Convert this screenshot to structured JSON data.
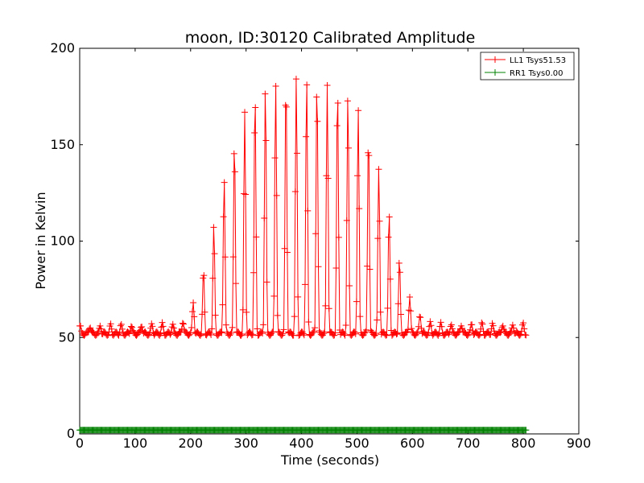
{
  "chart_data": {
    "type": "line",
    "title": "moon, ID:30120 Calibrated Amplitude",
    "xlabel": "Time (seconds)",
    "ylabel": "Power in Kelvin",
    "xlim": [
      0,
      900
    ],
    "ylim": [
      0,
      200
    ],
    "xticks": [
      0,
      100,
      200,
      300,
      400,
      500,
      600,
      700,
      800,
      900
    ],
    "yticks": [
      0,
      50,
      100,
      150,
      200
    ],
    "grid": false,
    "legend_position": "top-right",
    "series": [
      {
        "name": "LL1 Tsys51.53",
        "color": "#ff0000",
        "marker": "+",
        "description": "oscillating scan; baseline ~52 K, envelope peaks near 184 K at ~400 s",
        "peaks": [
          {
            "t": 0,
            "v": 56
          },
          {
            "t": 182,
            "v": 57
          },
          {
            "t": 200,
            "v": 65
          },
          {
            "t": 219,
            "v": 79
          },
          {
            "t": 238,
            "v": 102
          },
          {
            "t": 257,
            "v": 129
          },
          {
            "t": 276,
            "v": 150
          },
          {
            "t": 295,
            "v": 165
          },
          {
            "t": 314,
            "v": 175
          },
          {
            "t": 332,
            "v": 180
          },
          {
            "t": 351,
            "v": 182
          },
          {
            "t": 370,
            "v": 184
          },
          {
            "t": 388,
            "v": 184
          },
          {
            "t": 405,
            "v": 184
          },
          {
            "t": 424,
            "v": 184
          },
          {
            "t": 442,
            "v": 182
          },
          {
            "t": 460,
            "v": 180
          },
          {
            "t": 477,
            "v": 177
          },
          {
            "t": 495,
            "v": 172
          },
          {
            "t": 513,
            "v": 164
          },
          {
            "t": 532,
            "v": 147
          },
          {
            "t": 550,
            "v": 124
          },
          {
            "t": 568,
            "v": 101
          },
          {
            "t": 587,
            "v": 77
          },
          {
            "t": 606,
            "v": 65
          },
          {
            "t": 625,
            "v": 58
          },
          {
            "t": 644,
            "v": 57
          },
          {
            "t": 800,
            "v": 57
          }
        ],
        "baseline": 52
      },
      {
        "name": "RR1 Tsys0.00",
        "color": "#008000",
        "marker": "+",
        "description": "flat near 2 K from 0 to 805 s",
        "value": 2,
        "x_range": [
          0,
          805
        ]
      }
    ]
  }
}
